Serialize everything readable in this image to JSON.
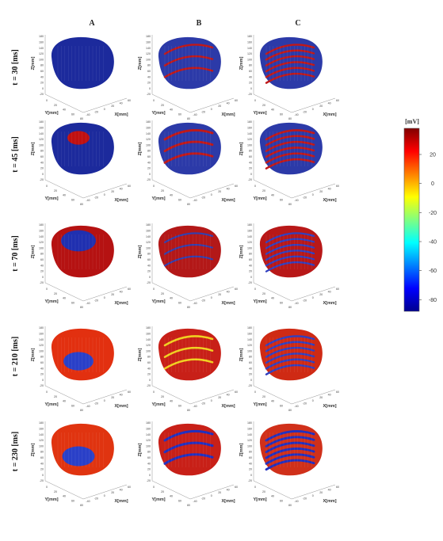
{
  "columns": [
    "A",
    "B",
    "C"
  ],
  "rows": [
    {
      "time_label": "t = 30 [ms]"
    },
    {
      "time_label": "t = 45 [ms]"
    },
    {
      "time_label": "t = 70 [ms]"
    },
    {
      "time_label": "t = 210 [ms]"
    },
    {
      "time_label": "t = 230 [ms]"
    }
  ],
  "axes": {
    "x_label": "X[mm]",
    "y_label": "Y[mm]",
    "z_label": "Z[mm]",
    "z_ticks": [
      "180",
      "160",
      "140",
      "120",
      "100",
      "80",
      "60",
      "40",
      "20",
      "0",
      "-20"
    ],
    "x_ticks": [
      "-40",
      "-20",
      "0",
      "20",
      "40",
      "60"
    ],
    "y_ticks": [
      "0",
      "20",
      "40",
      "60",
      "80"
    ]
  },
  "colorbar": {
    "unit": "[mV]",
    "ticks": [
      "20",
      "0",
      "-20",
      "-40",
      "-60",
      "-80"
    ],
    "range": [
      -88,
      38
    ],
    "colors": [
      "#00008f",
      "#0000ff",
      "#0080ff",
      "#00ffff",
      "#80ff80",
      "#ffff00",
      "#ff8000",
      "#ff0000",
      "#800000"
    ]
  },
  "panels": {
    "A": [
      {
        "base": "#1c2a9c",
        "accent": "#c01010",
        "accent_amount": 0.0
      },
      {
        "base": "#1c2a9c",
        "accent": "#c01010",
        "accent_amount": 0.12
      },
      {
        "base": "#b51212",
        "accent": "#2030b0",
        "accent_amount": 0.28
      },
      {
        "base": "#e23010",
        "accent": "#2a40c8",
        "accent_amount": 0.22
      },
      {
        "base": "#e03410",
        "accent": "#2a40c8",
        "accent_amount": 0.25
      }
    ],
    "B": [
      {
        "base": "#2c3aa8",
        "accent": "#c01818",
        "accent_amount": 0.3
      },
      {
        "base": "#2c3aa8",
        "accent": "#c01818",
        "accent_amount": 0.45
      },
      {
        "base": "#b31818",
        "accent": "#3040b0",
        "accent_amount": 0.2
      },
      {
        "base": "#c82018",
        "accent": "#f0d020",
        "accent_amount": 0.35
      },
      {
        "base": "#c82018",
        "accent": "#2030c0",
        "accent_amount": 0.5
      }
    ],
    "C": [
      {
        "base": "#2c3aa8",
        "accent": "#c01818",
        "accent_amount": 0.3
      },
      {
        "base": "#2c3aa8",
        "accent": "#c01818",
        "accent_amount": 0.35
      },
      {
        "base": "#b81818",
        "accent": "#3040c0",
        "accent_amount": 0.25
      },
      {
        "base": "#cf2a14",
        "accent": "#3040c0",
        "accent_amount": 0.3
      },
      {
        "base": "#d0301a",
        "accent": "#2030c0",
        "accent_amount": 0.45
      }
    ]
  }
}
